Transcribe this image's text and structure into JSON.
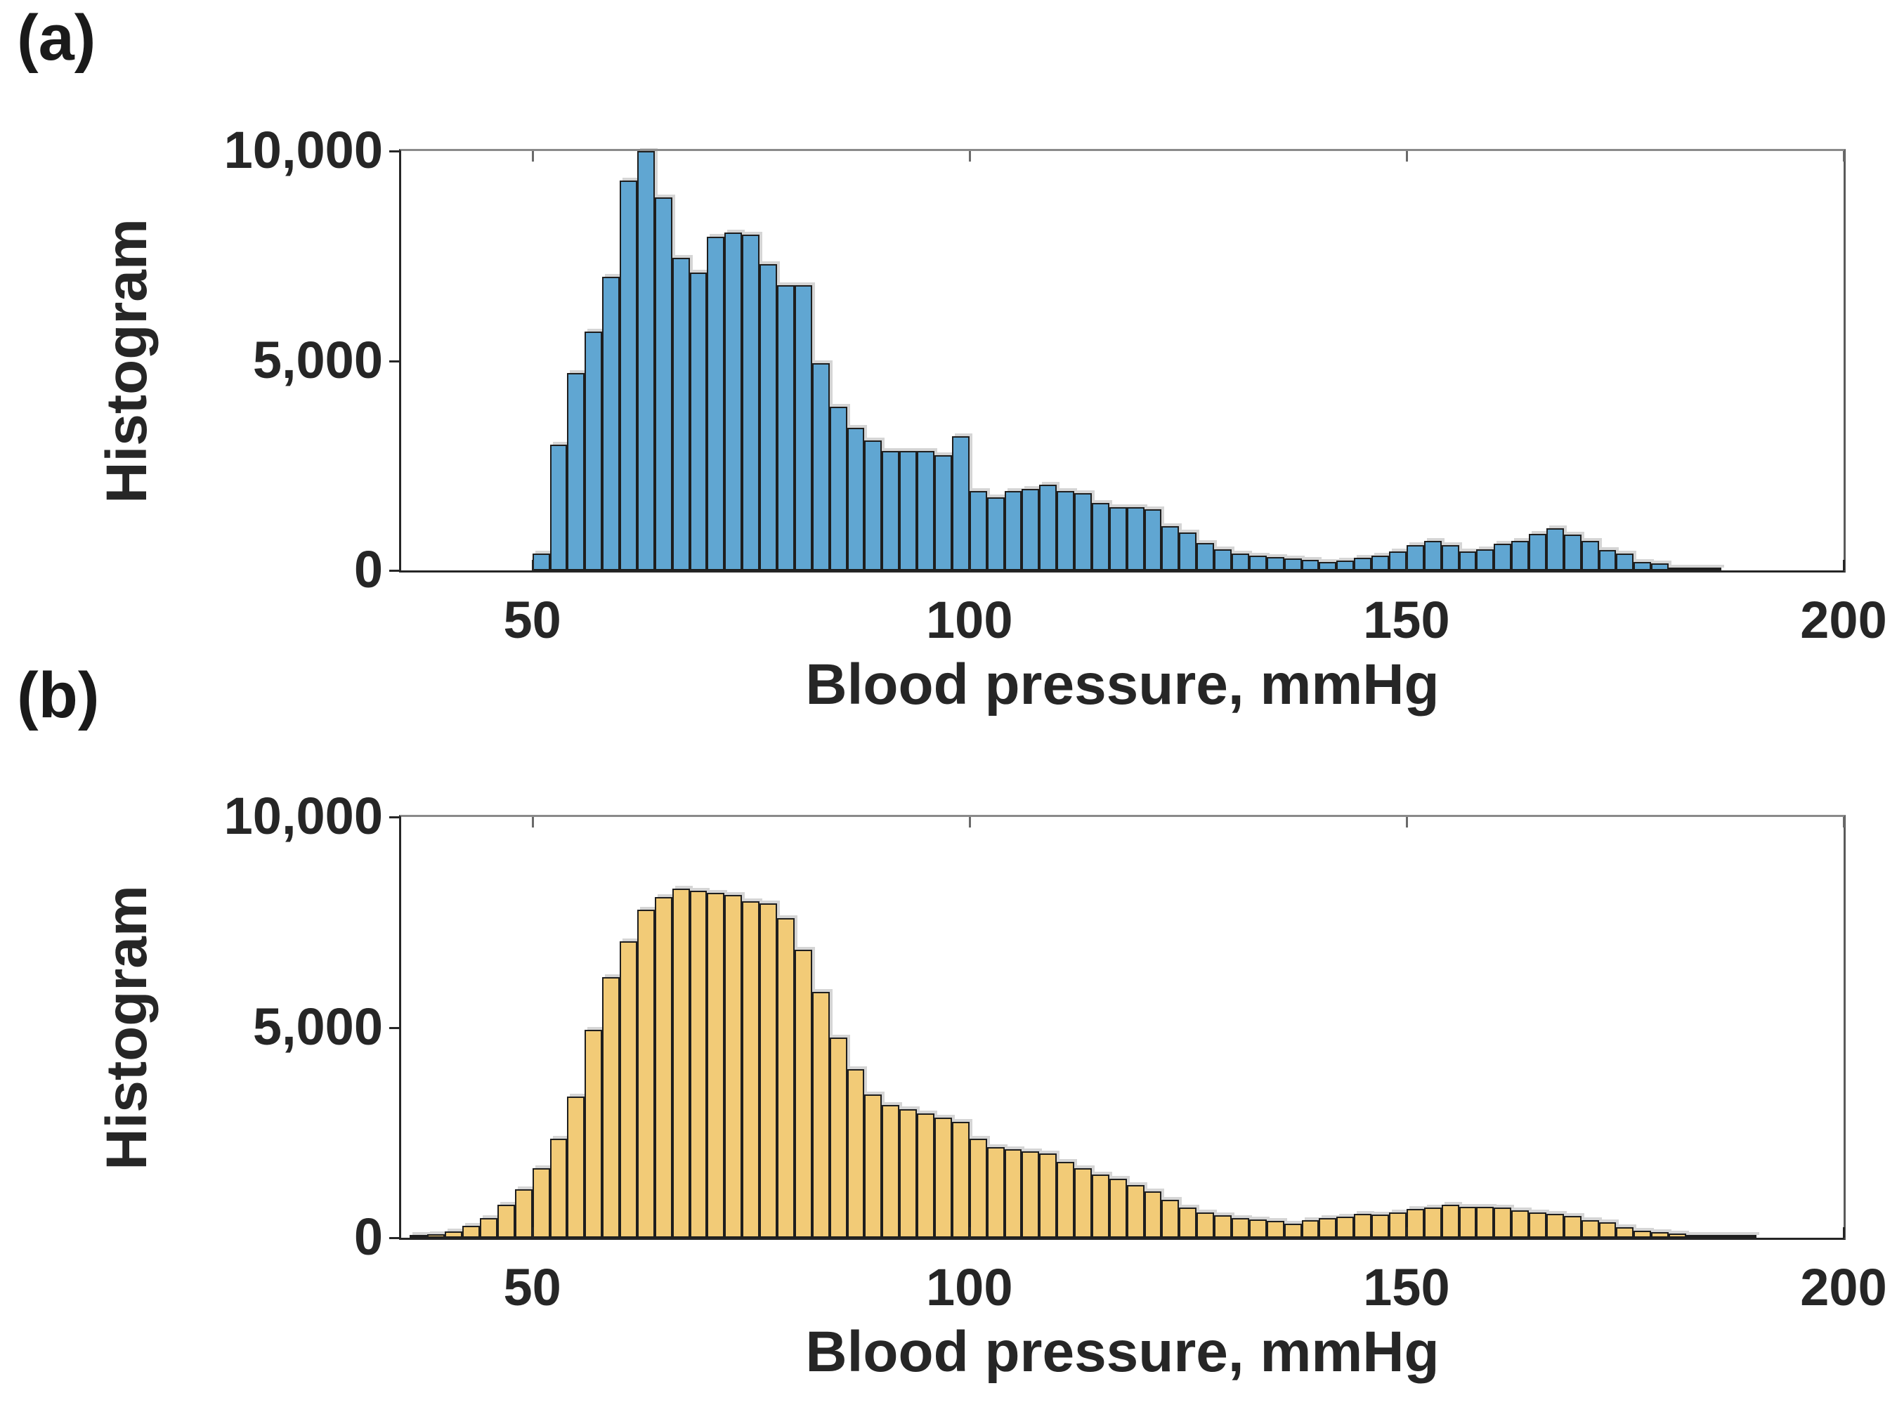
{
  "figure": {
    "panel_a": {
      "tag": "(a)",
      "ylabel": "Histogram",
      "xlabel": "Blood pressure, mmHg"
    },
    "panel_b": {
      "tag": "(b)",
      "ylabel": "Histogram",
      "xlabel": "Blood pressure, mmHg"
    }
  },
  "chart_data": [
    {
      "panel": "a",
      "type": "bar",
      "subtype": "histogram",
      "title": "",
      "xlabel": "Blood pressure, mmHg",
      "ylabel": "Histogram",
      "xlim": [
        35,
        200
      ],
      "ylim": [
        0,
        10000
      ],
      "xticks": [
        50,
        100,
        150,
        200
      ],
      "xtick_labels": [
        "50",
        "100",
        "150",
        "200"
      ],
      "yticks": [
        0,
        5000,
        10000
      ],
      "ytick_labels": [
        "0",
        "5,000",
        "10,000"
      ],
      "grid": false,
      "legend": "none",
      "bar_color": "#60A6D2",
      "edge_color": "#1e1e1e",
      "bin_start": 50,
      "bin_width": 2,
      "values": [
        400,
        3000,
        4700,
        5700,
        7000,
        9300,
        10000,
        8900,
        7450,
        7100,
        7950,
        8050,
        8000,
        7300,
        6800,
        6800,
        4950,
        3900,
        3400,
        3100,
        2850,
        2850,
        2850,
        2750,
        3200,
        1900,
        1750,
        1900,
        1950,
        2050,
        1900,
        1850,
        1600,
        1500,
        1500,
        1450,
        1050,
        900,
        650,
        500,
        400,
        350,
        320,
        290,
        250,
        200,
        240,
        300,
        350,
        450,
        600,
        700,
        600,
        450,
        500,
        630,
        700,
        870,
        1000,
        850,
        700,
        480,
        400,
        200,
        160,
        60,
        30,
        10
      ]
    },
    {
      "panel": "b",
      "type": "bar",
      "subtype": "histogram",
      "title": "",
      "xlabel": "Blood pressure, mmHg",
      "ylabel": "Histogram",
      "xlim": [
        35,
        200
      ],
      "ylim": [
        0,
        10000
      ],
      "xticks": [
        50,
        100,
        150,
        200
      ],
      "xtick_labels": [
        "50",
        "100",
        "150",
        "200"
      ],
      "yticks": [
        0,
        5000,
        10000
      ],
      "ytick_labels": [
        "0",
        "5,000",
        "10,000"
      ],
      "grid": false,
      "legend": "none",
      "bar_color": "#F2CB77",
      "edge_color": "#1e1e1e",
      "bin_start": 36,
      "bin_width": 2,
      "values": [
        30,
        80,
        150,
        280,
        470,
        780,
        1150,
        1650,
        2350,
        3350,
        4950,
        6200,
        7050,
        7800,
        8100,
        8300,
        8250,
        8200,
        8150,
        8000,
        7950,
        7600,
        6850,
        5850,
        4750,
        4000,
        3400,
        3150,
        3050,
        2950,
        2850,
        2750,
        2350,
        2150,
        2100,
        2050,
        2000,
        1800,
        1650,
        1500,
        1400,
        1250,
        1100,
        900,
        720,
        600,
        530,
        460,
        430,
        400,
        340,
        410,
        460,
        500,
        570,
        550,
        600,
        680,
        710,
        790,
        730,
        740,
        710,
        650,
        600,
        570,
        520,
        420,
        360,
        250,
        170,
        140,
        100,
        65,
        35,
        20,
        10
      ]
    }
  ]
}
